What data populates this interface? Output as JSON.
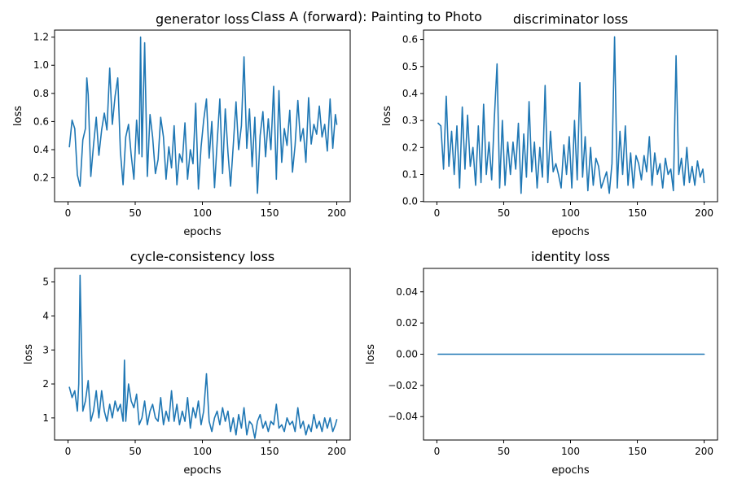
{
  "figure": {
    "suptitle": "Class A (forward): Painting to Photo"
  },
  "colors": {
    "series": "#1f77b4",
    "axes": "#000000",
    "background": "#ffffff"
  },
  "chart_data": [
    {
      "type": "line",
      "title": "generator loss",
      "xlabel": "epochs",
      "ylabel": "loss",
      "xlim": [
        -10,
        210
      ],
      "ylim": [
        0.03,
        1.25
      ],
      "xticks": [
        0,
        50,
        100,
        150,
        200
      ],
      "yticks": [
        0.2,
        0.4,
        0.6,
        0.8,
        1.0,
        1.2
      ],
      "ytick_labels": [
        "0.2",
        "0.4",
        "0.6",
        "0.8",
        "1.0",
        "1.2"
      ],
      "grid": false,
      "series": [
        {
          "x": [
            1,
            3,
            5,
            7,
            9,
            11,
            13,
            14,
            15,
            17,
            19,
            21,
            23,
            25,
            27,
            29,
            31,
            33,
            35,
            37,
            39,
            41,
            43,
            45,
            47,
            49,
            51,
            53,
            54,
            55,
            57,
            59,
            61,
            63,
            65,
            67,
            69,
            71,
            73,
            75,
            77,
            79,
            81,
            83,
            85,
            87,
            89,
            91,
            93,
            95,
            97,
            99,
            101,
            103,
            105,
            107,
            109,
            111,
            113,
            115,
            117,
            119,
            121,
            123,
            125,
            127,
            129,
            131,
            133,
            135,
            137,
            139,
            141,
            143,
            145,
            147,
            149,
            151,
            153,
            155,
            157,
            159,
            161,
            163,
            165,
            167,
            169,
            171,
            173,
            175,
            177,
            179,
            181,
            183,
            185,
            187,
            189,
            191,
            193,
            195,
            197,
            199,
            200
          ],
          "y": [
            0.42,
            0.61,
            0.55,
            0.22,
            0.14,
            0.47,
            0.55,
            0.91,
            0.79,
            0.21,
            0.43,
            0.63,
            0.36,
            0.54,
            0.66,
            0.54,
            0.98,
            0.58,
            0.78,
            0.91,
            0.39,
            0.15,
            0.49,
            0.58,
            0.36,
            0.19,
            0.61,
            0.37,
            1.2,
            0.35,
            1.16,
            0.21,
            0.65,
            0.49,
            0.23,
            0.33,
            0.63,
            0.49,
            0.19,
            0.42,
            0.27,
            0.57,
            0.15,
            0.37,
            0.31,
            0.59,
            0.19,
            0.4,
            0.3,
            0.73,
            0.12,
            0.42,
            0.61,
            0.76,
            0.34,
            0.6,
            0.13,
            0.45,
            0.76,
            0.23,
            0.69,
            0.38,
            0.14,
            0.43,
            0.74,
            0.4,
            0.57,
            1.06,
            0.41,
            0.69,
            0.28,
            0.63,
            0.09,
            0.5,
            0.67,
            0.35,
            0.62,
            0.4,
            0.85,
            0.19,
            0.82,
            0.31,
            0.55,
            0.43,
            0.68,
            0.24,
            0.43,
            0.75,
            0.46,
            0.55,
            0.31,
            0.77,
            0.44,
            0.58,
            0.51,
            0.71,
            0.49,
            0.58,
            0.39,
            0.76,
            0.41,
            0.65,
            0.58
          ]
        }
      ]
    },
    {
      "type": "line",
      "title": "discriminator loss",
      "xlabel": "epochs",
      "ylabel": "loss",
      "xlim": [
        -10,
        210
      ],
      "ylim": [
        -0.001,
        0.635
      ],
      "xticks": [
        0,
        50,
        100,
        150,
        200
      ],
      "yticks": [
        0.0,
        0.1,
        0.2,
        0.3,
        0.4,
        0.5,
        0.6
      ],
      "ytick_labels": [
        "0.0",
        "0.1",
        "0.2",
        "0.3",
        "0.4",
        "0.5",
        "0.6"
      ],
      "grid": false,
      "series": [
        {
          "x": [
            1,
            3,
            5,
            7,
            9,
            11,
            13,
            15,
            17,
            19,
            21,
            23,
            25,
            27,
            29,
            31,
            33,
            35,
            37,
            39,
            41,
            43,
            45,
            47,
            49,
            51,
            53,
            55,
            57,
            59,
            61,
            63,
            65,
            67,
            69,
            71,
            73,
            75,
            77,
            79,
            81,
            83,
            85,
            87,
            89,
            91,
            93,
            95,
            97,
            99,
            101,
            103,
            105,
            107,
            109,
            111,
            113,
            115,
            117,
            119,
            121,
            123,
            125,
            127,
            129,
            131,
            133,
            135,
            137,
            139,
            141,
            143,
            145,
            147,
            149,
            151,
            153,
            155,
            157,
            159,
            161,
            163,
            165,
            167,
            169,
            171,
            173,
            175,
            177,
            179,
            181,
            183,
            185,
            187,
            189,
            191,
            193,
            195,
            197,
            199,
            200
          ],
          "y": [
            0.29,
            0.28,
            0.12,
            0.39,
            0.13,
            0.26,
            0.1,
            0.28,
            0.05,
            0.35,
            0.12,
            0.32,
            0.13,
            0.2,
            0.06,
            0.28,
            0.07,
            0.36,
            0.1,
            0.22,
            0.08,
            0.31,
            0.51,
            0.05,
            0.3,
            0.06,
            0.22,
            0.1,
            0.22,
            0.12,
            0.29,
            0.03,
            0.25,
            0.09,
            0.37,
            0.11,
            0.22,
            0.05,
            0.2,
            0.09,
            0.43,
            0.07,
            0.26,
            0.11,
            0.14,
            0.1,
            0.05,
            0.21,
            0.1,
            0.24,
            0.05,
            0.3,
            0.08,
            0.44,
            0.09,
            0.24,
            0.04,
            0.2,
            0.06,
            0.16,
            0.13,
            0.05,
            0.08,
            0.11,
            0.03,
            0.14,
            0.61,
            0.05,
            0.26,
            0.1,
            0.28,
            0.06,
            0.18,
            0.05,
            0.17,
            0.14,
            0.08,
            0.17,
            0.11,
            0.24,
            0.06,
            0.18,
            0.1,
            0.14,
            0.05,
            0.16,
            0.1,
            0.12,
            0.04,
            0.54,
            0.1,
            0.16,
            0.06,
            0.2,
            0.07,
            0.13,
            0.06,
            0.15,
            0.09,
            0.12,
            0.07
          ]
        }
      ]
    },
    {
      "type": "line",
      "title": "cycle-consistency loss",
      "xlabel": "epochs",
      "ylabel": "loss",
      "xlim": [
        -10,
        210
      ],
      "ylim": [
        0.35,
        5.4
      ],
      "xticks": [
        0,
        50,
        100,
        150,
        200
      ],
      "yticks": [
        1,
        2,
        3,
        4,
        5
      ],
      "ytick_labels": [
        "1",
        "2",
        "3",
        "4",
        "5"
      ],
      "grid": false,
      "series": [
        {
          "x": [
            1,
            3,
            5,
            7,
            8,
            9,
            11,
            13,
            15,
            17,
            19,
            21,
            23,
            25,
            27,
            29,
            31,
            33,
            35,
            37,
            39,
            41,
            42,
            43,
            45,
            47,
            49,
            51,
            53,
            55,
            57,
            59,
            61,
            63,
            65,
            67,
            69,
            71,
            73,
            75,
            77,
            79,
            81,
            83,
            85,
            87,
            89,
            91,
            93,
            95,
            97,
            99,
            101,
            103,
            105,
            107,
            109,
            111,
            113,
            115,
            117,
            119,
            121,
            123,
            125,
            127,
            129,
            131,
            133,
            135,
            137,
            139,
            141,
            143,
            145,
            147,
            149,
            151,
            153,
            155,
            157,
            159,
            161,
            163,
            165,
            167,
            169,
            171,
            173,
            175,
            177,
            179,
            181,
            183,
            185,
            187,
            189,
            191,
            193,
            195,
            197,
            199,
            200
          ],
          "y": [
            1.9,
            1.6,
            1.8,
            1.2,
            2.0,
            5.2,
            1.2,
            1.5,
            2.1,
            0.9,
            1.2,
            1.8,
            1.0,
            1.8,
            1.2,
            0.9,
            1.4,
            1.0,
            1.5,
            1.2,
            1.4,
            0.9,
            2.7,
            0.9,
            2.0,
            1.5,
            1.3,
            1.7,
            0.8,
            1.0,
            1.5,
            0.8,
            1.2,
            1.4,
            1.0,
            0.9,
            1.6,
            0.8,
            1.2,
            0.9,
            1.8,
            0.9,
            1.4,
            0.8,
            1.2,
            0.9,
            1.6,
            0.7,
            1.3,
            1.0,
            1.5,
            0.8,
            1.2,
            2.3,
            0.9,
            0.6,
            1.0,
            1.2,
            0.8,
            1.3,
            0.9,
            1.2,
            0.6,
            1.0,
            0.5,
            1.1,
            0.7,
            1.3,
            0.5,
            0.9,
            0.8,
            0.4,
            0.9,
            1.1,
            0.7,
            0.9,
            0.6,
            0.9,
            0.8,
            1.4,
            0.7,
            0.8,
            0.6,
            1.0,
            0.8,
            0.9,
            0.6,
            1.3,
            0.7,
            0.9,
            0.5,
            0.8,
            0.6,
            1.1,
            0.7,
            0.9,
            0.6,
            1.0,
            0.7,
            1.0,
            0.6,
            0.8,
            0.95
          ]
        }
      ]
    },
    {
      "type": "line",
      "title": "identity loss",
      "xlabel": "epochs",
      "ylabel": "loss",
      "xlim": [
        -10,
        210
      ],
      "ylim": [
        -0.055,
        0.055
      ],
      "xticks": [
        0,
        50,
        100,
        150,
        200
      ],
      "yticks": [
        -0.04,
        -0.02,
        0.0,
        0.02,
        0.04
      ],
      "ytick_labels": [
        "−0.04",
        "−0.02",
        "0.00",
        "0.02",
        "0.04"
      ],
      "grid": false,
      "series": [
        {
          "x": [
            1,
            200
          ],
          "y": [
            0,
            0
          ]
        }
      ]
    }
  ]
}
